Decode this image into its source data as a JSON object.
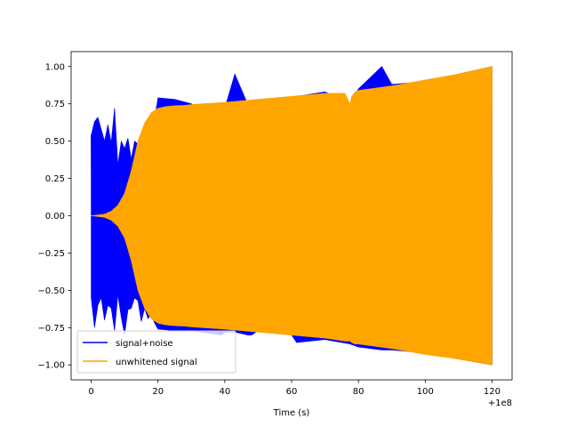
{
  "chart_data": {
    "type": "line",
    "title": "",
    "xlabel": "Time (s)",
    "ylabel": "",
    "x_offset_label": "+1e8",
    "xlim": [
      -6,
      126
    ],
    "ylim": [
      -1.1,
      1.1
    ],
    "x_ticks": [
      0,
      20,
      40,
      60,
      80,
      100,
      120
    ],
    "x_tick_labels": [
      "0",
      "20",
      "40",
      "60",
      "80",
      "100",
      "120"
    ],
    "y_ticks": [
      -1.0,
      -0.75,
      -0.5,
      -0.25,
      0.0,
      0.25,
      0.5,
      0.75,
      1.0
    ],
    "y_tick_labels": [
      "−1.00",
      "−0.75",
      "−0.50",
      "−0.25",
      "0.00",
      "0.25",
      "0.50",
      "0.75",
      "1.00"
    ],
    "grid": false,
    "legend_position": "lower-left",
    "series": [
      {
        "name": "signal+noise",
        "color": "#0000ff",
        "x": [
          0,
          1,
          2,
          3,
          4,
          5,
          6,
          7,
          8,
          9,
          10,
          11,
          12,
          13,
          14,
          15,
          16,
          17,
          18,
          19,
          20,
          25,
          30,
          39,
          40,
          43,
          47,
          48,
          50,
          60,
          61.5,
          70,
          77.5,
          80,
          87,
          90,
          100,
          110,
          120
        ],
        "upper": [
          0.54,
          0.63,
          0.66,
          0.58,
          0.5,
          0.61,
          0.49,
          0.72,
          0.34,
          0.5,
          0.45,
          0.52,
          0.38,
          0.5,
          0.48,
          0.42,
          0.55,
          0.43,
          0.42,
          0.65,
          0.79,
          0.78,
          0.75,
          0.62,
          0.72,
          0.95,
          0.74,
          0.72,
          0.75,
          0.78,
          0.8,
          0.83,
          0.75,
          0.85,
          1.0,
          0.88,
          0.9,
          0.95,
          1.0
        ],
        "lower": [
          -0.55,
          -0.75,
          -0.6,
          -0.55,
          -0.7,
          -0.6,
          -0.62,
          -0.77,
          -0.53,
          -0.68,
          -0.8,
          -0.63,
          -0.62,
          -0.55,
          -0.57,
          -0.71,
          -0.62,
          -0.69,
          -0.66,
          -0.72,
          -0.76,
          -0.77,
          -0.77,
          -0.8,
          -0.78,
          -0.78,
          -0.8,
          -0.8,
          -0.77,
          -0.8,
          -0.85,
          -0.83,
          -0.86,
          -0.88,
          -0.9,
          -0.9,
          -0.92,
          -0.96,
          -1.0
        ]
      },
      {
        "name": "unwhitened signal",
        "color": "#ffa500",
        "x": [
          0,
          2,
          4,
          6,
          8,
          10,
          12,
          14,
          16,
          18,
          20,
          22,
          24,
          26,
          28,
          30,
          40,
          50,
          60,
          70,
          76,
          77,
          77.5,
          78,
          79,
          80,
          90,
          100,
          110,
          120
        ],
        "upper": [
          0.0,
          0.005,
          0.01,
          0.03,
          0.07,
          0.15,
          0.3,
          0.5,
          0.62,
          0.69,
          0.72,
          0.73,
          0.735,
          0.738,
          0.74,
          0.745,
          0.76,
          0.78,
          0.8,
          0.82,
          0.82,
          0.77,
          0.75,
          0.8,
          0.83,
          0.84,
          0.87,
          0.91,
          0.95,
          1.0
        ],
        "lower": [
          0.0,
          -0.005,
          -0.01,
          -0.03,
          -0.07,
          -0.15,
          -0.3,
          -0.5,
          -0.62,
          -0.69,
          -0.72,
          -0.73,
          -0.735,
          -0.738,
          -0.74,
          -0.745,
          -0.76,
          -0.78,
          -0.8,
          -0.82,
          -0.84,
          -0.84,
          -0.84,
          -0.85,
          -0.86,
          -0.86,
          -0.89,
          -0.93,
          -0.96,
          -1.0
        ]
      }
    ]
  }
}
